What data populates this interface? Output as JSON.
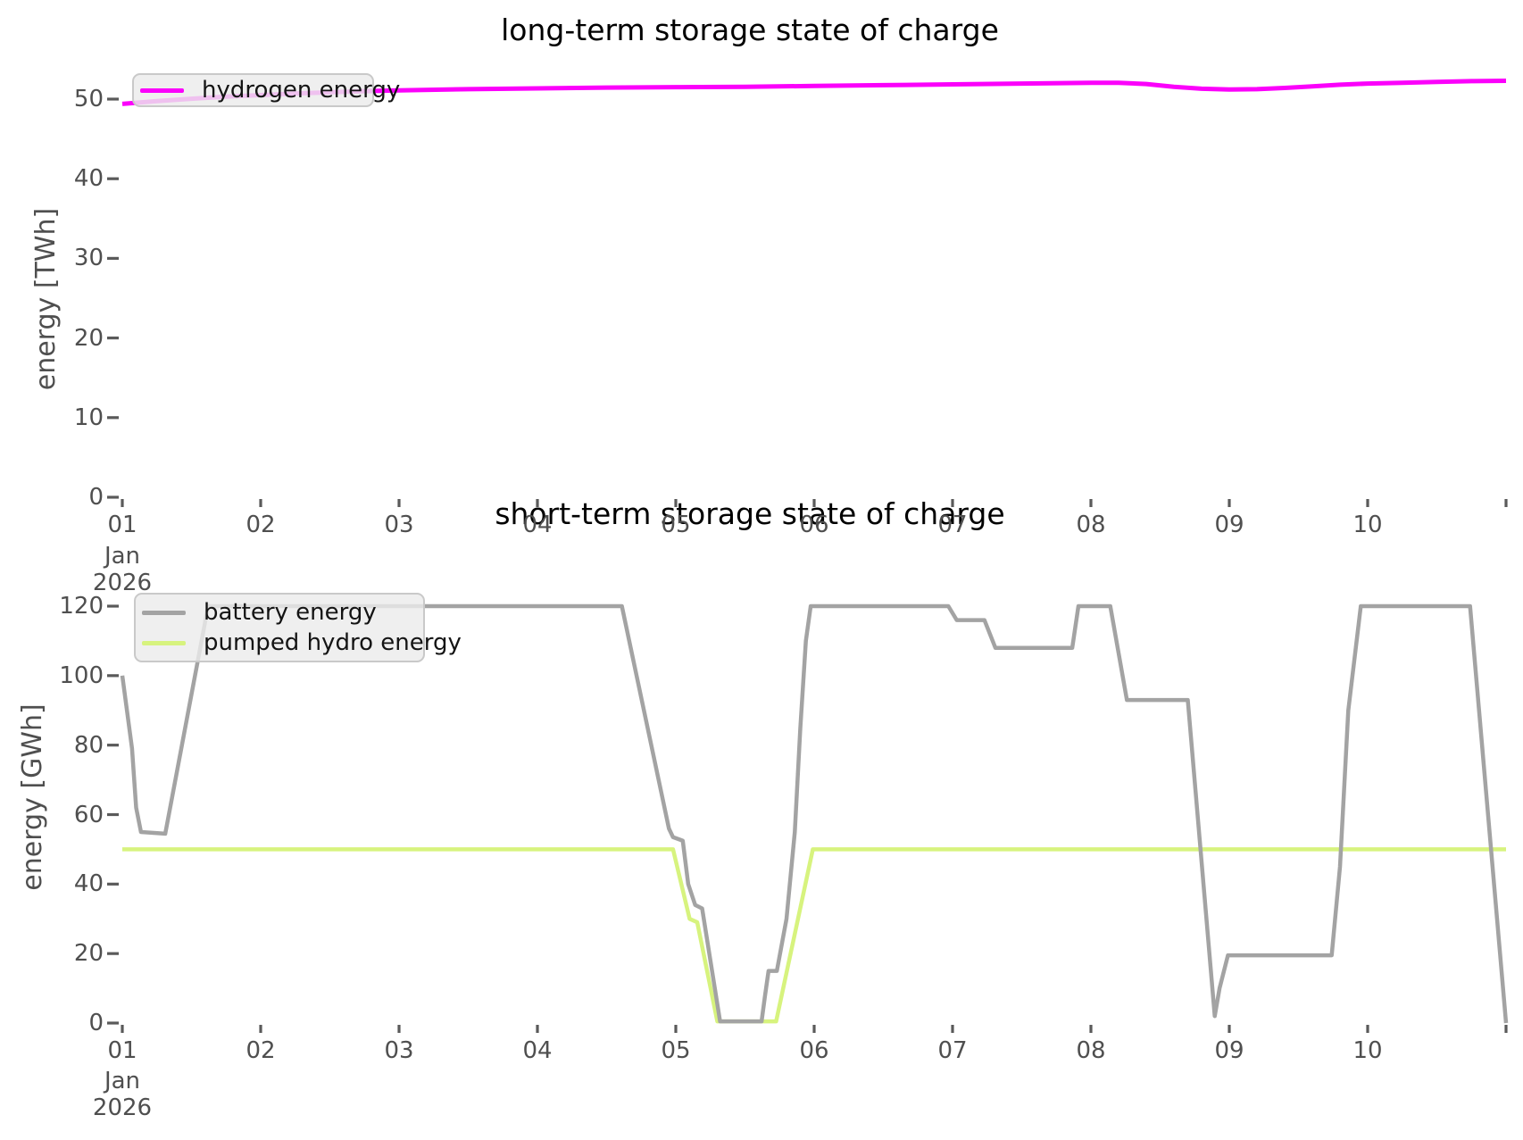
{
  "figure": {
    "background": "#ffffff",
    "text_color": "#4f4f4f",
    "title_color": "#000000"
  },
  "chart_data": [
    {
      "type": "line",
      "title": "long-term storage state of charge",
      "ylabel": "energy [TWh]",
      "ylim": [
        0,
        52.9
      ],
      "yticks": [
        0,
        10,
        20,
        30,
        40,
        50
      ],
      "grid": false,
      "legend_position": "upper left",
      "x_axis": {
        "unit": "date",
        "start": "2026-01-01",
        "end": "2026-01-11",
        "tick_labels": [
          "01",
          "02",
          "03",
          "04",
          "05",
          "06",
          "07",
          "08",
          "09",
          "10",
          ""
        ],
        "month": "Jan",
        "year": "2026"
      },
      "series": [
        {
          "name": "hydrogen energy",
          "color": "#fb00fb",
          "unit": "TWh",
          "x_days": [
            1.0,
            1.25,
            1.5,
            1.75,
            2.0,
            2.25,
            2.5,
            2.75,
            3.0,
            3.5,
            4.0,
            4.5,
            5.0,
            5.5,
            6.0,
            6.5,
            7.0,
            7.5,
            8.0,
            8.2,
            8.4,
            8.6,
            8.8,
            9.0,
            9.2,
            9.4,
            9.6,
            9.8,
            10.0,
            10.25,
            10.5,
            10.75,
            11.0
          ],
          "values": [
            49.4,
            49.75,
            50.05,
            50.3,
            50.5,
            50.7,
            50.85,
            51.0,
            51.1,
            51.25,
            51.35,
            51.45,
            51.5,
            51.55,
            51.65,
            51.75,
            51.85,
            51.95,
            52.05,
            52.05,
            51.9,
            51.55,
            51.3,
            51.2,
            51.25,
            51.4,
            51.6,
            51.8,
            51.95,
            52.05,
            52.15,
            52.25,
            52.3
          ]
        }
      ]
    },
    {
      "type": "line",
      "title": "short-term storage state of charge",
      "ylabel": "energy [GWh]",
      "ylim": [
        0,
        126
      ],
      "yticks": [
        0,
        20,
        40,
        60,
        80,
        100,
        120
      ],
      "grid": false,
      "legend_position": "upper left",
      "x_axis": {
        "unit": "date",
        "start": "2026-01-01",
        "end": "2026-01-11",
        "tick_labels": [
          "01",
          "02",
          "03",
          "04",
          "05",
          "06",
          "07",
          "08",
          "09",
          "10",
          ""
        ],
        "month": "Jan",
        "year": "2026"
      },
      "series": [
        {
          "name": "battery energy",
          "color": "#a3a3a3",
          "unit": "GWh",
          "x_days": [
            1.0,
            1.07,
            1.1,
            1.135,
            1.31,
            1.62,
            4.61,
            4.95,
            4.98,
            5.05,
            5.09,
            5.14,
            5.19,
            5.32,
            5.62,
            5.645,
            5.67,
            5.73,
            5.8,
            5.86,
            5.9,
            5.94,
            5.975,
            6.97,
            7.03,
            7.23,
            7.31,
            7.865,
            7.91,
            8.14,
            8.26,
            8.7,
            8.895,
            8.93,
            8.99,
            9.74,
            9.8,
            9.86,
            9.95,
            10.74,
            11.0
          ],
          "values": [
            100,
            79,
            62,
            55,
            54.5,
            120,
            120,
            56,
            53.5,
            52.5,
            40,
            34,
            33,
            0.5,
            0.5,
            8,
            15,
            15,
            30,
            55,
            85,
            110,
            120,
            120,
            116,
            116,
            108,
            108,
            120,
            120,
            93,
            93,
            2,
            10,
            19.5,
            19.5,
            45,
            90,
            120,
            120,
            0
          ]
        },
        {
          "name": "pumped hydro energy",
          "color": "#d7f37e",
          "unit": "GWh",
          "x_days": [
            1.0,
            4.98,
            5.1,
            5.155,
            5.3,
            5.725,
            5.99,
            11.0
          ],
          "values": [
            50,
            50,
            30,
            29,
            0.5,
            0.5,
            50,
            50
          ]
        }
      ]
    }
  ]
}
